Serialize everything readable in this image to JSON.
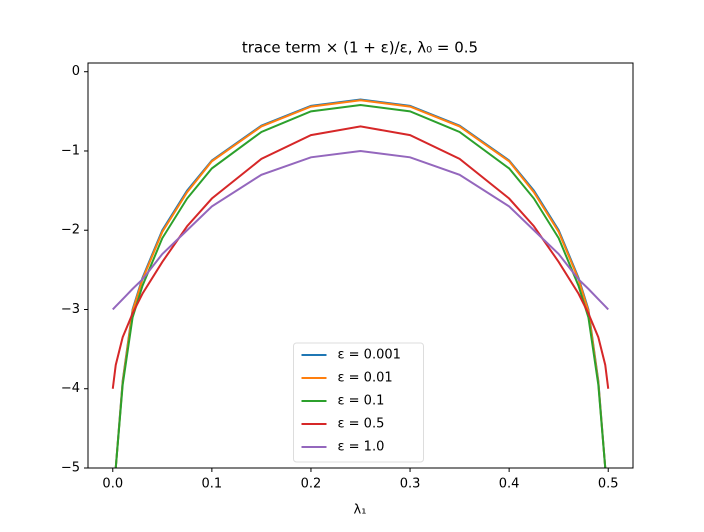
{
  "chart_data": {
    "type": "line",
    "title": "trace term × (1 + ε)/ε, λ₀ = 0.5",
    "x_label": "λ₁",
    "x": [
      0,
      0.003,
      0.01,
      0.02,
      0.03,
      0.05,
      0.075,
      0.1,
      0.15,
      0.2,
      0.25,
      0.3,
      0.35,
      0.4,
      0.425,
      0.45,
      0.47,
      0.48,
      0.49,
      0.497,
      0.5
    ],
    "series": [
      {
        "name": "ε = 0.001",
        "color": "#1f77b4",
        "values": [
          null,
          -5,
          -3.9,
          -3.0,
          -2.6,
          -2.0,
          -1.5,
          -1.12,
          -0.68,
          -0.43,
          -0.35,
          -0.43,
          -0.68,
          -1.12,
          -1.5,
          -2.0,
          -2.6,
          -3.0,
          -3.9,
          -5,
          null
        ]
      },
      {
        "name": "ε = 0.01",
        "color": "#ff7f0e",
        "values": [
          null,
          -5,
          -3.92,
          -3.02,
          -2.62,
          -2.02,
          -1.52,
          -1.13,
          -0.69,
          -0.44,
          -0.36,
          -0.44,
          -0.69,
          -1.13,
          -1.52,
          -2.02,
          -2.62,
          -3.02,
          -3.92,
          -5,
          null
        ]
      },
      {
        "name": "ε = 0.1",
        "color": "#2ca02c",
        "values": [
          null,
          -5,
          -3.95,
          -3.1,
          -2.7,
          -2.1,
          -1.6,
          -1.22,
          -0.76,
          -0.5,
          -0.42,
          -0.5,
          -0.76,
          -1.22,
          -1.6,
          -2.1,
          -2.7,
          -3.1,
          -3.95,
          -5,
          null
        ]
      },
      {
        "name": "ε = 0.5",
        "color": "#d62728",
        "values": [
          -4.0,
          -3.7,
          -3.35,
          -3.05,
          -2.8,
          -2.4,
          -1.95,
          -1.6,
          -1.1,
          -0.8,
          -0.69,
          -0.8,
          -1.1,
          -1.6,
          -1.95,
          -2.4,
          -2.8,
          -3.05,
          -3.35,
          -3.7,
          -4.0
        ]
      },
      {
        "name": "ε = 1.0",
        "color": "#9467bd",
        "values": [
          -3.0,
          -2.96,
          -2.87,
          -2.74,
          -2.62,
          -2.3,
          -2.0,
          -1.7,
          -1.3,
          -1.08,
          -1.0,
          -1.08,
          -1.3,
          -1.7,
          -2.0,
          -2.3,
          -2.62,
          -2.74,
          -2.87,
          -2.96,
          -3.0
        ]
      }
    ],
    "xlim": [
      -0.025,
      0.525
    ],
    "ylim": [
      -5,
      0.11
    ],
    "xticks": [
      {
        "value": 0,
        "label": "0.0"
      },
      0.1,
      0.2,
      0.3,
      0.4,
      0.5
    ],
    "yticks": [
      0,
      {
        "value": -1,
        "label": "−1"
      },
      {
        "value": -2,
        "label": "−2"
      },
      {
        "value": -3,
        "label": "−3"
      },
      {
        "value": -4,
        "label": "−4"
      },
      {
        "value": -5,
        "label": "−5"
      }
    ],
    "legend": "lower center",
    "grid": false
  }
}
